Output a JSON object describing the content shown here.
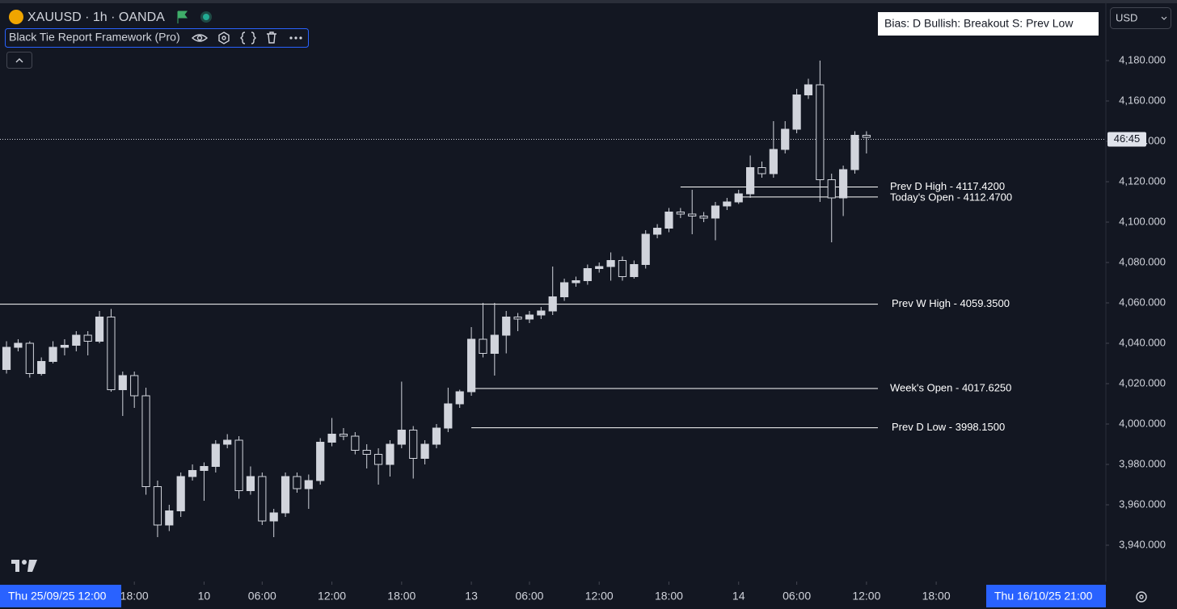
{
  "header": {
    "symbol": "XAUUSD · 1h · OANDA",
    "indicator": "Black Tie Report Framework (Pro)",
    "bias": "Bias: D  Bullish: Breakout  S: Prev Low",
    "currency": "USD",
    "range_start": "Thu 25/09/25  12:00",
    "range_end": "Thu 16/10/25  21:00"
  },
  "chart_data": {
    "type": "candlestick",
    "open": [
      4027,
      4038,
      4040,
      4025,
      4031,
      4038,
      4039,
      4044,
      4041,
      4053,
      4017,
      4024,
      4014,
      3969,
      3950,
      3957,
      3974,
      3977,
      3979,
      3990,
      3992,
      3967,
      3974,
      3952,
      3956,
      3974,
      3968,
      3972,
      3991,
      3995,
      3994,
      3987,
      3985,
      3980,
      3990,
      3997,
      3983,
      3990,
      3998,
      4010,
      4016,
      4042,
      4035,
      4044,
      4053,
      4052,
      4054,
      4056,
      4063,
      4070,
      4071,
      4077,
      4078,
      4081,
      4073,
      4079,
      4094,
      4097,
      4105,
      4104,
      4103,
      4102,
      4108,
      4110,
      4114,
      4127,
      4124,
      4136,
      4146,
      4163,
      4168,
      4121,
      4112,
      4126,
      4143
    ],
    "high": [
      4041,
      4042,
      4041,
      4033,
      4041,
      4042,
      4046,
      4046,
      4056,
      4057,
      4026,
      4026,
      4018,
      3972,
      3960,
      3976,
      3980,
      3981,
      3992,
      3995,
      3994,
      3979,
      3976,
      3958,
      3976,
      3976,
      3975,
      3993,
      4003,
      3998,
      3996,
      3990,
      3988,
      3992,
      4021,
      3999,
      3992,
      4000,
      4018,
      4017,
      4048,
      4060,
      4060,
      4056,
      4055,
      4056,
      4058,
      4078,
      4072,
      4073,
      4079,
      4080,
      4085,
      4083,
      4081,
      4096,
      4099,
      4107,
      4107,
      4116,
      4105,
      4110,
      4112,
      4116,
      4133,
      4130,
      4150,
      4150,
      4166,
      4171,
      4180,
      4124,
      4128,
      4145,
      4145
    ],
    "low": [
      4025,
      4036,
      4023,
      4024,
      4030,
      4034,
      4036,
      4034,
      4040,
      4016,
      4004,
      4008,
      3965,
      3944,
      3947,
      3954,
      3972,
      3962,
      3976,
      3988,
      3963,
      3965,
      3950,
      3944,
      3954,
      3966,
      3958,
      3970,
      3989,
      3992,
      3985,
      3978,
      3970,
      3974,
      3988,
      3973,
      3980,
      3988,
      3996,
      4008,
      4014,
      4033,
      4024,
      4035,
      4046,
      4050,
      4052,
      4054,
      4061,
      4068,
      4069,
      4075,
      4071,
      4071,
      4072,
      4077,
      4092,
      4095,
      4102,
      4094,
      4100,
      4091,
      4106,
      4109,
      4112,
      4122,
      4122,
      4134,
      4144,
      4161,
      4110,
      4090,
      4103,
      4124,
      4134
    ],
    "close": [
      4038,
      4040,
      4025,
      4031,
      4038,
      4039,
      4044,
      4041,
      4053,
      4017,
      4024,
      4014,
      3969,
      3950,
      3957,
      3974,
      3977,
      3979,
      3990,
      3992,
      3967,
      3974,
      3952,
      3956,
      3974,
      3968,
      3972,
      3991,
      3995,
      3994,
      3987,
      3985,
      3980,
      3990,
      3997,
      3983,
      3990,
      3998,
      4010,
      4016,
      4042,
      4035,
      4044,
      4053,
      4052,
      4054,
      4056,
      4063,
      4070,
      4071,
      4077,
      4078,
      4081,
      4073,
      4079,
      4094,
      4097,
      4105,
      4104,
      4103,
      4102,
      4108,
      4110,
      4114,
      4127,
      4124,
      4136,
      4146,
      4163,
      4168,
      4121,
      4112,
      4126,
      4143,
      4142
    ],
    "xlim": [
      -0.56,
      94.6
    ],
    "xticks": [
      {
        "value": 11,
        "label": "18:00"
      },
      {
        "value": 17,
        "label": "10"
      },
      {
        "value": 22,
        "label": "06:00"
      },
      {
        "value": 28,
        "label": "12:00"
      },
      {
        "value": 34,
        "label": "18:00"
      },
      {
        "value": 40,
        "label": "13"
      },
      {
        "value": 45,
        "label": "06:00"
      },
      {
        "value": 51,
        "label": "12:00"
      },
      {
        "value": 57,
        "label": "18:00"
      },
      {
        "value": 63,
        "label": "14"
      },
      {
        "value": 68,
        "label": "06:00"
      },
      {
        "value": 74,
        "label": "12:00"
      },
      {
        "value": 80,
        "label": "18:00"
      }
    ],
    "ylim": [
      3922,
      4208
    ],
    "yticks": [
      {
        "value": 3940,
        "label": "3,940.000"
      },
      {
        "value": 3960,
        "label": "3,960.000"
      },
      {
        "value": 3980,
        "label": "3,980.000"
      },
      {
        "value": 4000,
        "label": "4,000.000"
      },
      {
        "value": 4020,
        "label": "4,020.000"
      },
      {
        "value": 4040,
        "label": "4,040.000"
      },
      {
        "value": 4060,
        "label": "4,060.000"
      },
      {
        "value": 4080,
        "label": "4,080.000"
      },
      {
        "value": 4100,
        "label": "4,100.000"
      },
      {
        "value": 4120,
        "label": "4,120.000"
      },
      {
        "value": 4140,
        "label": "4,140.000"
      },
      {
        "value": 4160,
        "label": "4,160.000"
      },
      {
        "value": 4180,
        "label": "4,180.000"
      }
    ],
    "levels": [
      {
        "label": "Prev D High - 4117.4200",
        "value": 4117.42,
        "start": 58
      },
      {
        "label": "Today's Open - 4112.4700",
        "value": 4112.47,
        "start": 63
      },
      {
        "label": "Prev W High - 4059.3500",
        "value": 4059.35,
        "start": -0.56
      },
      {
        "label": "Week's Open   - 4017.6250",
        "value": 4017.625,
        "start": 40
      },
      {
        "label": "Prev D Low  - 3998.1500",
        "value": 3998.15,
        "start": 40
      }
    ],
    "last_price": 4141,
    "countdown": "46:45"
  }
}
